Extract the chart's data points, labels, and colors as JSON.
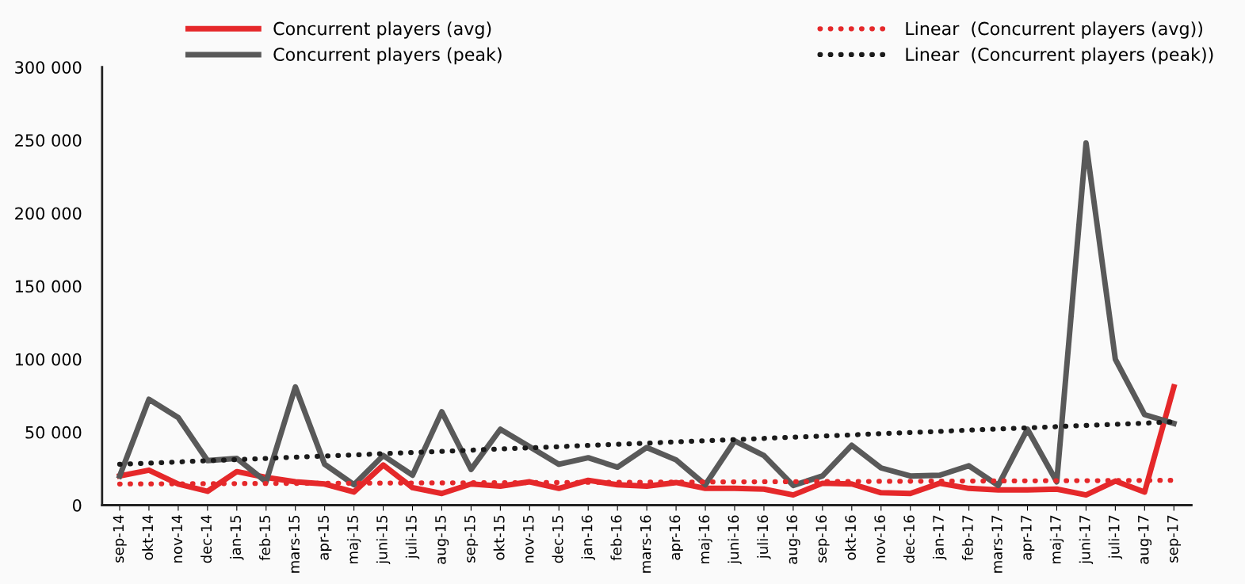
{
  "chart_data": {
    "type": "line",
    "categories": [
      "sep-14",
      "okt-14",
      "nov-14",
      "dec-14",
      "jan-15",
      "feb-15",
      "mars-15",
      "apr-15",
      "maj-15",
      "juni-15",
      "juli-15",
      "aug-15",
      "sep-15",
      "okt-15",
      "nov-15",
      "dec-15",
      "jan-16",
      "feb-16",
      "mars-16",
      "apr-16",
      "maj-16",
      "juni-16",
      "juli-16",
      "aug-16",
      "sep-16",
      "okt-16",
      "nov-16",
      "dec-16",
      "jan-17",
      "feb-17",
      "mars-17",
      "apr-17",
      "maj-17",
      "juni-17",
      "juli-17",
      "aug-17",
      "sep-17"
    ],
    "series": [
      {
        "name": "Concurrent players (avg)",
        "color": "#e5282a",
        "line_style": "solid",
        "values": [
          20000,
          24000,
          14500,
          9500,
          23000,
          19000,
          16000,
          14500,
          9000,
          27500,
          12000,
          8000,
          14500,
          13000,
          16000,
          11500,
          17000,
          14000,
          13000,
          15500,
          11500,
          11500,
          11000,
          7000,
          15000,
          14500,
          8500,
          8000,
          15000,
          11500,
          10500,
          10500,
          11000,
          7000,
          16500,
          9000,
          81000
        ]
      },
      {
        "name": "Concurrent players (peak)",
        "color": "#595959",
        "line_style": "solid",
        "values": [
          20000,
          72500,
          60000,
          30500,
          32000,
          16000,
          81000,
          28000,
          14000,
          34000,
          20500,
          64000,
          24500,
          52000,
          40000,
          28000,
          32500,
          26000,
          39500,
          31000,
          14000,
          44000,
          34000,
          13500,
          20000,
          41000,
          25500,
          20000,
          20500,
          27000,
          13500,
          52000,
          16000,
          248000,
          100000,
          62000,
          56000
        ]
      },
      {
        "name": "Linear  (Concurrent players (avg))",
        "color": "#e5282a",
        "line_style": "dotted",
        "x": [
          "sep-14",
          "sep-17"
        ],
        "values": [
          14500,
          17000
        ]
      },
      {
        "name": "Linear  (Concurrent players (peak))",
        "color": "#1a1a1a",
        "line_style": "dotted",
        "x": [
          "sep-14",
          "sep-17"
        ],
        "values": [
          28000,
          57000
        ]
      }
    ],
    "ylim": [
      0,
      300000
    ],
    "yticks": [
      {
        "value": 0,
        "label": "0"
      },
      {
        "value": 50000,
        "label": "50 000"
      },
      {
        "value": 100000,
        "label": "100 000"
      },
      {
        "value": 150000,
        "label": "150 000"
      },
      {
        "value": 200000,
        "label": "200 000"
      },
      {
        "value": 250000,
        "label": "250 000"
      },
      {
        "value": 300000,
        "label": "300 000"
      }
    ],
    "grid": false,
    "legend": "top",
    "marker": "none"
  }
}
